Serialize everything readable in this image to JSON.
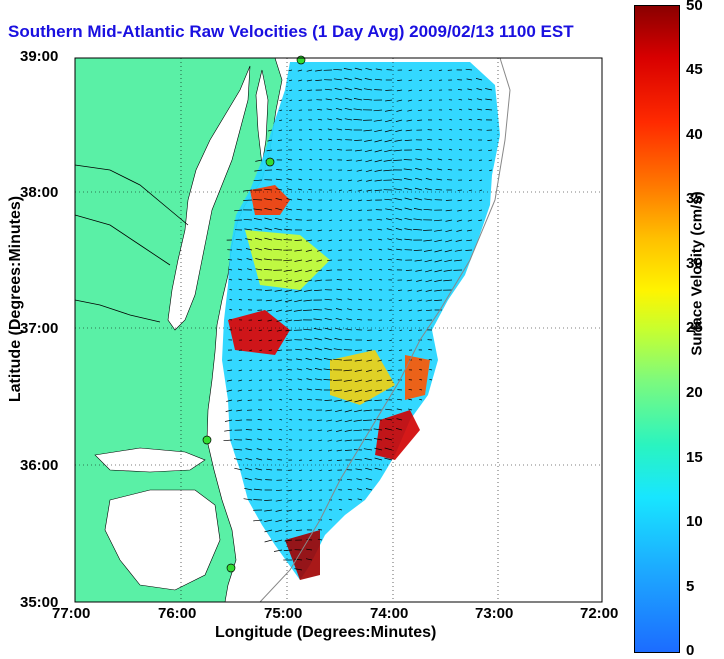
{
  "title": "Southern Mid-Atlantic Raw Velocities (1 Day Avg) 2009/02/13 1100 EST",
  "axes": {
    "xlabel": "Longitude (Degrees:Minutes)",
    "ylabel": "Latitude (Degrees:Minutes)",
    "x_ticks": [
      "77:00",
      "76:00",
      "75:00",
      "74:00",
      "73:00",
      "72:00"
    ],
    "y_ticks": [
      "39:00",
      "38:00",
      "37:00",
      "36:00",
      "35:00"
    ]
  },
  "colorbar": {
    "label": "Surface Velocity (cm/s)",
    "ticks": [
      "50",
      "45",
      "40",
      "35",
      "30",
      "25",
      "20",
      "15",
      "10",
      "5",
      "0"
    ],
    "range": [
      0,
      50
    ]
  },
  "colors": {
    "land": "#5af0a6",
    "title": "#1a10e0",
    "station": "#33dd33"
  }
}
